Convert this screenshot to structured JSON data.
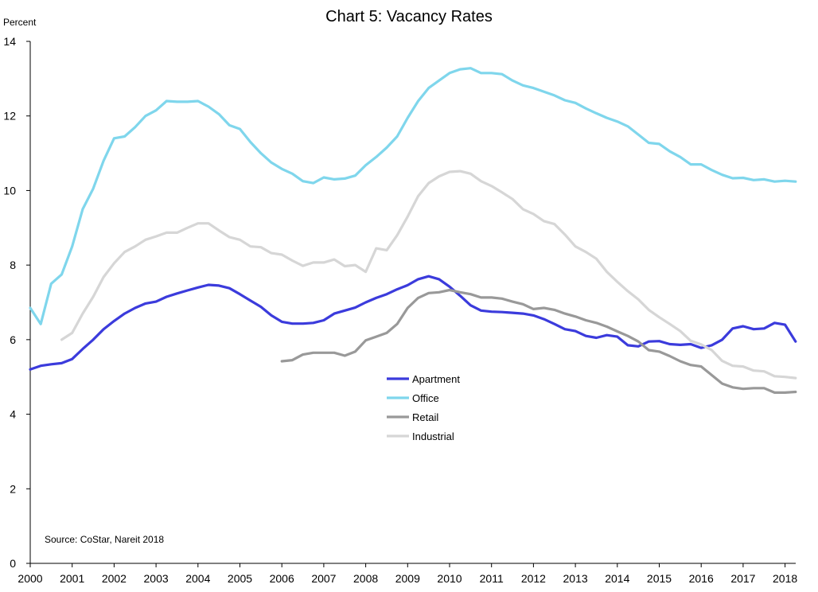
{
  "chart_data": {
    "type": "line",
    "title": "Chart 5: Vacancy Rates",
    "ylabel": "Percent",
    "xlabel": "",
    "ylim": [
      0,
      14
    ],
    "yticks": [
      0,
      2,
      4,
      6,
      8,
      10,
      12,
      14
    ],
    "xlim": [
      2000,
      2018.25
    ],
    "xticks": [
      "2000",
      "2001",
      "2002",
      "2003",
      "2004",
      "2005",
      "2006",
      "2007",
      "2008",
      "2009",
      "2010",
      "2011",
      "2012",
      "2013",
      "2014",
      "2015",
      "2016",
      "2017",
      "2018"
    ],
    "grid": false,
    "legend_position": "center",
    "source": "Source: CoStar, Nareit 2018",
    "series": [
      {
        "name": "Apartment",
        "color": "#3b3bdc",
        "x": [
          2000,
          2000.25,
          2000.5,
          2000.75,
          2001,
          2001.25,
          2001.5,
          2001.75,
          2002,
          2002.25,
          2002.5,
          2002.75,
          2003,
          2003.25,
          2003.5,
          2003.75,
          2004,
          2004.25,
          2004.5,
          2004.75,
          2005,
          2005.25,
          2005.5,
          2005.75,
          2006,
          2006.25,
          2006.5,
          2006.75,
          2007,
          2007.25,
          2007.5,
          2007.75,
          2008,
          2008.25,
          2008.5,
          2008.75,
          2009,
          2009.25,
          2009.5,
          2009.75,
          2010,
          2010.25,
          2010.5,
          2010.75,
          2011,
          2011.25,
          2011.5,
          2011.75,
          2012,
          2012.25,
          2012.5,
          2012.75,
          2013,
          2013.25,
          2013.5,
          2013.75,
          2014,
          2014.25,
          2014.5,
          2014.75,
          2015,
          2015.25,
          2015.5,
          2015.75,
          2016,
          2016.25,
          2016.5,
          2016.75,
          2017,
          2017.25,
          2017.5,
          2017.75,
          2018,
          2018.25
        ],
        "values": [
          5.2,
          5.3,
          5.34,
          5.37,
          5.48,
          5.75,
          6.0,
          6.28,
          6.5,
          6.7,
          6.85,
          6.97,
          7.02,
          7.15,
          7.24,
          7.32,
          7.4,
          7.47,
          7.45,
          7.38,
          7.22,
          7.05,
          6.88,
          6.65,
          6.48,
          6.43,
          6.43,
          6.45,
          6.52,
          6.7,
          6.78,
          6.86,
          7.0,
          7.12,
          7.22,
          7.35,
          7.46,
          7.62,
          7.7,
          7.62,
          7.42,
          7.18,
          6.92,
          6.78,
          6.75,
          6.74,
          6.72,
          6.7,
          6.65,
          6.55,
          6.42,
          6.28,
          6.23,
          6.1,
          6.05,
          6.12,
          6.08,
          5.85,
          5.82,
          5.95,
          5.96,
          5.88,
          5.86,
          5.88,
          5.78,
          5.85,
          6.0,
          6.3,
          6.36,
          6.28,
          6.3,
          6.45,
          6.4,
          5.95
        ]
      },
      {
        "name": "Office",
        "color": "#7fd6ec",
        "x": [
          2000,
          2000.25,
          2000.5,
          2000.75,
          2001,
          2001.25,
          2001.5,
          2001.75,
          2002,
          2002.25,
          2002.5,
          2002.75,
          2003,
          2003.25,
          2003.5,
          2003.75,
          2004,
          2004.25,
          2004.5,
          2004.75,
          2005,
          2005.25,
          2005.5,
          2005.75,
          2006,
          2006.25,
          2006.5,
          2006.75,
          2007,
          2007.25,
          2007.5,
          2007.75,
          2008,
          2008.25,
          2008.5,
          2008.75,
          2009,
          2009.25,
          2009.5,
          2009.75,
          2010,
          2010.25,
          2010.5,
          2010.75,
          2011,
          2011.25,
          2011.5,
          2011.75,
          2012,
          2012.25,
          2012.5,
          2012.75,
          2013,
          2013.25,
          2013.5,
          2013.75,
          2014,
          2014.25,
          2014.5,
          2014.75,
          2015,
          2015.25,
          2015.5,
          2015.75,
          2016,
          2016.25,
          2016.5,
          2016.75,
          2017,
          2017.25,
          2017.5,
          2017.75,
          2018,
          2018.25
        ],
        "values": [
          6.85,
          6.42,
          7.5,
          7.75,
          8.5,
          9.5,
          10.05,
          10.8,
          11.4,
          11.45,
          11.7,
          12.0,
          12.15,
          12.4,
          12.38,
          12.38,
          12.4,
          12.25,
          12.05,
          11.75,
          11.65,
          11.3,
          11.0,
          10.75,
          10.58,
          10.45,
          10.25,
          10.2,
          10.35,
          10.3,
          10.32,
          10.4,
          10.68,
          10.9,
          11.15,
          11.45,
          11.95,
          12.4,
          12.75,
          12.95,
          13.15,
          13.25,
          13.28,
          13.15,
          13.15,
          13.12,
          12.95,
          12.82,
          12.75,
          12.65,
          12.55,
          12.42,
          12.35,
          12.2,
          12.07,
          11.95,
          11.85,
          11.72,
          11.5,
          11.28,
          11.25,
          11.05,
          10.9,
          10.7,
          10.7,
          10.55,
          10.42,
          10.33,
          10.34,
          10.28,
          10.3,
          10.24,
          10.26,
          10.24
        ]
      },
      {
        "name": "Retail",
        "color": "#999999",
        "x": [
          2006,
          2006.25,
          2006.5,
          2006.75,
          2007,
          2007.25,
          2007.5,
          2007.75,
          2008,
          2008.25,
          2008.5,
          2008.75,
          2009,
          2009.25,
          2009.5,
          2009.75,
          2010,
          2010.25,
          2010.5,
          2010.75,
          2011,
          2011.25,
          2011.5,
          2011.75,
          2012,
          2012.25,
          2012.5,
          2012.75,
          2013,
          2013.25,
          2013.5,
          2013.75,
          2014,
          2014.25,
          2014.5,
          2014.75,
          2015,
          2015.25,
          2015.5,
          2015.75,
          2016,
          2016.25,
          2016.5,
          2016.75,
          2017,
          2017.25,
          2017.5,
          2017.75,
          2018,
          2018.25
        ],
        "values": [
          5.42,
          5.45,
          5.6,
          5.65,
          5.65,
          5.65,
          5.57,
          5.68,
          5.98,
          6.08,
          6.18,
          6.42,
          6.85,
          7.12,
          7.25,
          7.27,
          7.33,
          7.27,
          7.22,
          7.13,
          7.13,
          7.1,
          7.02,
          6.95,
          6.82,
          6.85,
          6.8,
          6.7,
          6.62,
          6.52,
          6.45,
          6.35,
          6.22,
          6.1,
          5.95,
          5.72,
          5.68,
          5.56,
          5.42,
          5.32,
          5.28,
          5.05,
          4.82,
          4.72,
          4.68,
          4.7,
          4.7,
          4.58,
          4.58,
          4.6
        ]
      },
      {
        "name": "Industrial",
        "color": "#d6d6d6",
        "x": [
          2000.75,
          2001,
          2001.25,
          2001.5,
          2001.75,
          2002,
          2002.25,
          2002.5,
          2002.75,
          2003,
          2003.25,
          2003.5,
          2003.75,
          2004,
          2004.25,
          2004.5,
          2004.75,
          2005,
          2005.25,
          2005.5,
          2005.75,
          2006,
          2006.25,
          2006.5,
          2006.75,
          2007,
          2007.25,
          2007.5,
          2007.75,
          2008,
          2008.25,
          2008.5,
          2008.75,
          2009,
          2009.25,
          2009.5,
          2009.75,
          2010,
          2010.25,
          2010.5,
          2010.75,
          2011,
          2011.25,
          2011.5,
          2011.75,
          2012,
          2012.25,
          2012.5,
          2012.75,
          2013,
          2013.25,
          2013.5,
          2013.75,
          2014,
          2014.25,
          2014.5,
          2014.75,
          2015,
          2015.25,
          2015.5,
          2015.75,
          2016,
          2016.25,
          2016.5,
          2016.75,
          2017,
          2017.25,
          2017.5,
          2017.75,
          2018,
          2018.25
        ],
        "values": [
          6.0,
          6.18,
          6.7,
          7.15,
          7.68,
          8.05,
          8.35,
          8.5,
          8.68,
          8.77,
          8.87,
          8.87,
          9.0,
          9.12,
          9.12,
          8.93,
          8.75,
          8.68,
          8.5,
          8.48,
          8.32,
          8.28,
          8.12,
          7.98,
          8.07,
          8.07,
          8.15,
          7.97,
          8.0,
          7.82,
          8.45,
          8.4,
          8.8,
          9.3,
          9.85,
          10.2,
          10.38,
          10.5,
          10.52,
          10.45,
          10.25,
          10.12,
          9.95,
          9.77,
          9.5,
          9.37,
          9.18,
          9.1,
          8.82,
          8.5,
          8.35,
          8.17,
          7.82,
          7.55,
          7.3,
          7.08,
          6.8,
          6.6,
          6.42,
          6.23,
          5.97,
          5.87,
          5.72,
          5.43,
          5.3,
          5.28,
          5.17,
          5.15,
          5.02,
          5.0,
          4.97
        ]
      }
    ]
  }
}
